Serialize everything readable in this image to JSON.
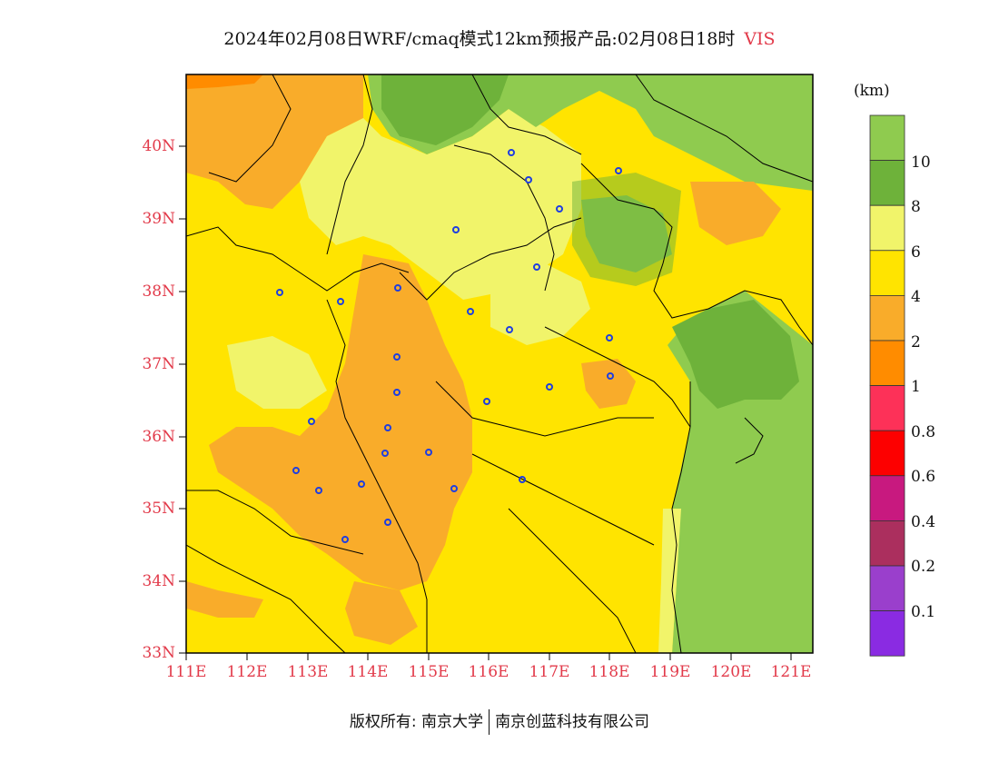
{
  "title": {
    "main": "2024年02月08日WRF/cmaq模式12km预报产品:02月08日18时",
    "variable": "VIS"
  },
  "map": {
    "lat_labels": [
      "40N",
      "39N",
      "38N",
      "37N",
      "36N",
      "35N",
      "34N",
      "33N"
    ],
    "lon_labels": [
      "111E",
      "112E",
      "113E",
      "114E",
      "115E",
      "116E",
      "117E",
      "118E",
      "119E",
      "120E",
      "121E"
    ],
    "background_color": "#ffe400",
    "region_colors": {
      "green_dark": "#6eb23a",
      "green_light": "#8fcb4f",
      "yellow_light": "#f1f46a",
      "yellow": "#ffe400",
      "orange_light": "#f9ac2a",
      "orange": "#ff8c00"
    }
  },
  "colorbar": {
    "unit": "(km)",
    "colors": [
      "#8fcb4f",
      "#6eb23a",
      "#f1f46a",
      "#ffe400",
      "#f9ac2a",
      "#ff8c00",
      "#fd3158",
      "#fd0000",
      "#c8197f",
      "#ab2f5e",
      "#9a3fcc",
      "#8a2be2"
    ],
    "labels": [
      "10",
      "8",
      "6",
      "4",
      "2",
      "1",
      "0.8",
      "0.6",
      "0.4",
      "0.2",
      "0.1"
    ]
  },
  "footer": {
    "left": "版权所有: 南京大学",
    "right": "南京创蓝科技有限公司"
  }
}
